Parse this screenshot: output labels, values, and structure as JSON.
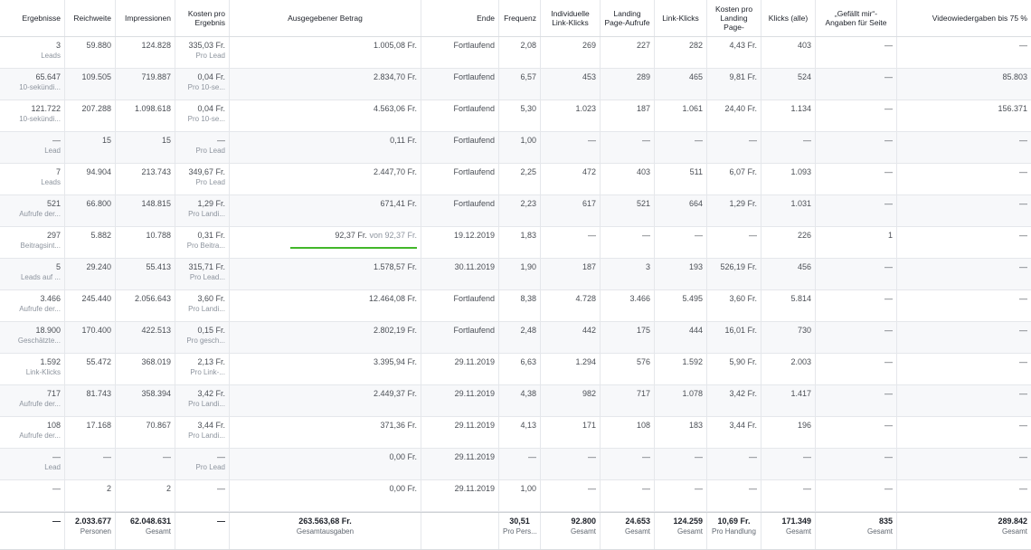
{
  "columns": [
    "Ergebnisse",
    "Reichweite",
    "Impressionen",
    "Kosten pro Ergebnis",
    "Ausgegebener Betrag",
    "Ende",
    "Frequenz",
    "Individuelle Link-Klicks",
    "Landing Page-Aufrufe",
    "Link-Klicks",
    "Kosten pro Landing Page-",
    "Klicks (alle)",
    "„Gefällt mir“-Angaben für Seite",
    "Videowiedergaben bis 75 %"
  ],
  "rows": [
    {
      "ergebnis": "3",
      "ergebnis_sub": "Leads",
      "reichweite": "59.880",
      "impressionen": "124.828",
      "kosten": "335,03 Fr.",
      "kosten_sub": "Pro Lead",
      "betrag": "1.005,08 Fr.",
      "ende": "Fortlaufend",
      "frequenz": "2,08",
      "ind_link": "269",
      "landing": "227",
      "link": "282",
      "kosten_lp": "4,43 Fr.",
      "klicks": "403",
      "gefaellt": "—",
      "video": "—"
    },
    {
      "ergebnis": "65.647",
      "ergebnis_sub": "10-sekündi...",
      "reichweite": "109.505",
      "impressionen": "719.887",
      "kosten": "0,04 Fr.",
      "kosten_sub": "Pro 10-se...",
      "betrag": "2.834,70 Fr.",
      "ende": "Fortlaufend",
      "frequenz": "6,57",
      "ind_link": "453",
      "landing": "289",
      "link": "465",
      "kosten_lp": "9,81 Fr.",
      "klicks": "524",
      "gefaellt": "—",
      "video": "85.803"
    },
    {
      "ergebnis": "121.722",
      "ergebnis_sub": "10-sekündi...",
      "reichweite": "207.288",
      "impressionen": "1.098.618",
      "kosten": "0,04 Fr.",
      "kosten_sub": "Pro 10-se...",
      "betrag": "4.563,06 Fr.",
      "ende": "Fortlaufend",
      "frequenz": "5,30",
      "ind_link": "1.023",
      "landing": "187",
      "link": "1.061",
      "kosten_lp": "24,40 Fr.",
      "klicks": "1.134",
      "gefaellt": "—",
      "video": "156.371"
    },
    {
      "ergebnis": "—",
      "ergebnis_sub": "Lead",
      "reichweite": "15",
      "impressionen": "15",
      "kosten": "—",
      "kosten_sub": "Pro Lead",
      "betrag": "0,11 Fr.",
      "ende": "Fortlaufend",
      "frequenz": "1,00",
      "ind_link": "—",
      "landing": "—",
      "link": "—",
      "kosten_lp": "—",
      "klicks": "—",
      "gefaellt": "—",
      "video": "—"
    },
    {
      "ergebnis": "7",
      "ergebnis_sub": "Leads",
      "reichweite": "94.904",
      "impressionen": "213.743",
      "kosten": "349,67 Fr.",
      "kosten_sub": "Pro Lead",
      "betrag": "2.447,70 Fr.",
      "ende": "Fortlaufend",
      "frequenz": "2,25",
      "ind_link": "472",
      "landing": "403",
      "link": "511",
      "kosten_lp": "6,07 Fr.",
      "klicks": "1.093",
      "gefaellt": "—",
      "video": "—"
    },
    {
      "ergebnis": "521",
      "ergebnis_sub": "Aufrufe der...",
      "reichweite": "66.800",
      "impressionen": "148.815",
      "kosten": "1,29 Fr.",
      "kosten_sub": "Pro Landi...",
      "betrag": "671,41 Fr.",
      "ende": "Fortlaufend",
      "frequenz": "2,23",
      "ind_link": "617",
      "landing": "521",
      "link": "664",
      "kosten_lp": "1,29 Fr.",
      "klicks": "1.031",
      "gefaellt": "—",
      "video": "—"
    },
    {
      "ergebnis": "297",
      "ergebnis_sub": "Beitragsint...",
      "reichweite": "5.882",
      "impressionen": "10.788",
      "kosten": "0,31 Fr.",
      "kosten_sub": "Pro Beitra...",
      "betrag_spent": "92,37 Fr.",
      "betrag_von": "von 92,37 Fr.",
      "progress": 1.0,
      "ende": "19.12.2019",
      "frequenz": "1,83",
      "ind_link": "—",
      "landing": "—",
      "link": "—",
      "kosten_lp": "—",
      "klicks": "226",
      "gefaellt": "1",
      "video": "—"
    },
    {
      "ergebnis": "5",
      "ergebnis_sub": "Leads auf ...",
      "reichweite": "29.240",
      "impressionen": "55.413",
      "kosten": "315,71 Fr.",
      "kosten_sub": "Pro Lead...",
      "betrag": "1.578,57 Fr.",
      "ende": "30.11.2019",
      "frequenz": "1,90",
      "ind_link": "187",
      "landing": "3",
      "link": "193",
      "kosten_lp": "526,19 Fr.",
      "klicks": "456",
      "gefaellt": "—",
      "video": "—"
    },
    {
      "ergebnis": "3.466",
      "ergebnis_sub": "Aufrufe der...",
      "reichweite": "245.440",
      "impressionen": "2.056.643",
      "kosten": "3,60 Fr.",
      "kosten_sub": "Pro Landi...",
      "betrag": "12.464,08 Fr.",
      "ende": "Fortlaufend",
      "frequenz": "8,38",
      "ind_link": "4.728",
      "landing": "3.466",
      "link": "5.495",
      "kosten_lp": "3,60 Fr.",
      "klicks": "5.814",
      "gefaellt": "—",
      "video": "—"
    },
    {
      "ergebnis": "18.900",
      "ergebnis_sub": "Geschätzte...",
      "reichweite": "170.400",
      "impressionen": "422.513",
      "kosten": "0,15 Fr.",
      "kosten_sub": "Pro gesch...",
      "betrag": "2.802,19 Fr.",
      "ende": "Fortlaufend",
      "frequenz": "2,48",
      "ind_link": "442",
      "landing": "175",
      "link": "444",
      "kosten_lp": "16,01 Fr.",
      "klicks": "730",
      "gefaellt": "—",
      "video": "—"
    },
    {
      "ergebnis": "1.592",
      "ergebnis_sub": "Link-Klicks",
      "reichweite": "55.472",
      "impressionen": "368.019",
      "kosten": "2,13 Fr.",
      "kosten_sub": "Pro Link-...",
      "betrag": "3.395,94 Fr.",
      "ende": "29.11.2019",
      "frequenz": "6,63",
      "ind_link": "1.294",
      "landing": "576",
      "link": "1.592",
      "kosten_lp": "5,90 Fr.",
      "klicks": "2.003",
      "gefaellt": "—",
      "video": "—"
    },
    {
      "ergebnis": "717",
      "ergebnis_sub": "Aufrufe der...",
      "reichweite": "81.743",
      "impressionen": "358.394",
      "kosten": "3,42 Fr.",
      "kosten_sub": "Pro Landi...",
      "betrag": "2.449,37 Fr.",
      "ende": "29.11.2019",
      "frequenz": "4,38",
      "ind_link": "982",
      "landing": "717",
      "link": "1.078",
      "kosten_lp": "3,42 Fr.",
      "klicks": "1.417",
      "gefaellt": "—",
      "video": "—"
    },
    {
      "ergebnis": "108",
      "ergebnis_sub": "Aufrufe der...",
      "reichweite": "17.168",
      "impressionen": "70.867",
      "kosten": "3,44 Fr.",
      "kosten_sub": "Pro Landi...",
      "betrag": "371,36 Fr.",
      "ende": "29.11.2019",
      "frequenz": "4,13",
      "ind_link": "171",
      "landing": "108",
      "link": "183",
      "kosten_lp": "3,44 Fr.",
      "klicks": "196",
      "gefaellt": "—",
      "video": "—"
    },
    {
      "ergebnis": "—",
      "ergebnis_sub": "Lead",
      "reichweite": "—",
      "impressionen": "—",
      "kosten": "—",
      "kosten_sub": "Pro Lead",
      "betrag": "0,00 Fr.",
      "ende": "29.11.2019",
      "frequenz": "—",
      "ind_link": "—",
      "landing": "—",
      "link": "—",
      "kosten_lp": "—",
      "klicks": "—",
      "gefaellt": "—",
      "video": "—"
    },
    {
      "ergebnis": "—",
      "ergebnis_sub": "",
      "reichweite": "2",
      "impressionen": "2",
      "kosten": "—",
      "kosten_sub": "",
      "betrag": "0,00 Fr.",
      "ende": "29.11.2019",
      "frequenz": "1,00",
      "ind_link": "—",
      "landing": "—",
      "link": "—",
      "kosten_lp": "—",
      "klicks": "—",
      "gefaellt": "—",
      "video": "—"
    }
  ],
  "totals": {
    "ergebnis": "—",
    "reichweite": "2.033.677",
    "reichweite_sub": "Personen",
    "impressionen": "62.048.631",
    "impressionen_sub": "Gesamt",
    "kosten": "—",
    "betrag": "263.563,68 Fr.",
    "betrag_sub": "Gesamtausgaben",
    "frequenz": "30,51",
    "frequenz_sub": "Pro Pers...",
    "ind_link": "92.800",
    "ind_link_sub": "Gesamt",
    "landing": "24.653",
    "landing_sub": "Gesamt",
    "link": "124.259",
    "link_sub": "Gesamt",
    "kosten_lp": "10,69 Fr.",
    "kosten_lp_sub": "Pro Handlung",
    "klicks": "171.349",
    "klicks_sub": "Gesamt",
    "gefaellt": "835",
    "gefaellt_sub": "Gesamt",
    "video": "289.842",
    "video_sub": "Gesamt"
  },
  "colors": {
    "progress_fill": "#42b72a",
    "row_alt": "#f7f8fa",
    "border": "#e5e7eb"
  }
}
